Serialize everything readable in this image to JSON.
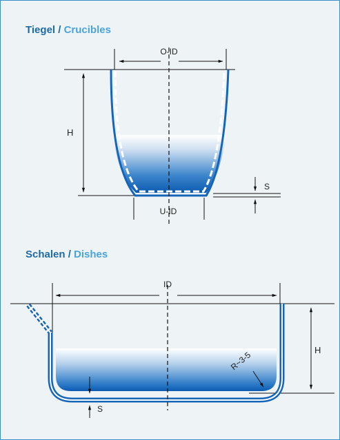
{
  "crucibles": {
    "title_de": "Tiegel",
    "separator": " / ",
    "title_en": "Crucibles",
    "labels": {
      "top_diameter": "O-ID",
      "bottom_diameter": "U-ID",
      "height": "H",
      "wall": "S"
    }
  },
  "dishes": {
    "title_de": "Schalen",
    "separator": " / ",
    "title_en": "Dishes",
    "labels": {
      "diameter": "ID",
      "height": "H",
      "wall": "S",
      "radius": "R~3-5"
    }
  },
  "colors": {
    "border": "#3b8fc8",
    "background": "#eef3f6",
    "vessel_blue": "#1565b8",
    "title_dark": "#1f6aa5",
    "title_light": "#4ba3dc"
  }
}
